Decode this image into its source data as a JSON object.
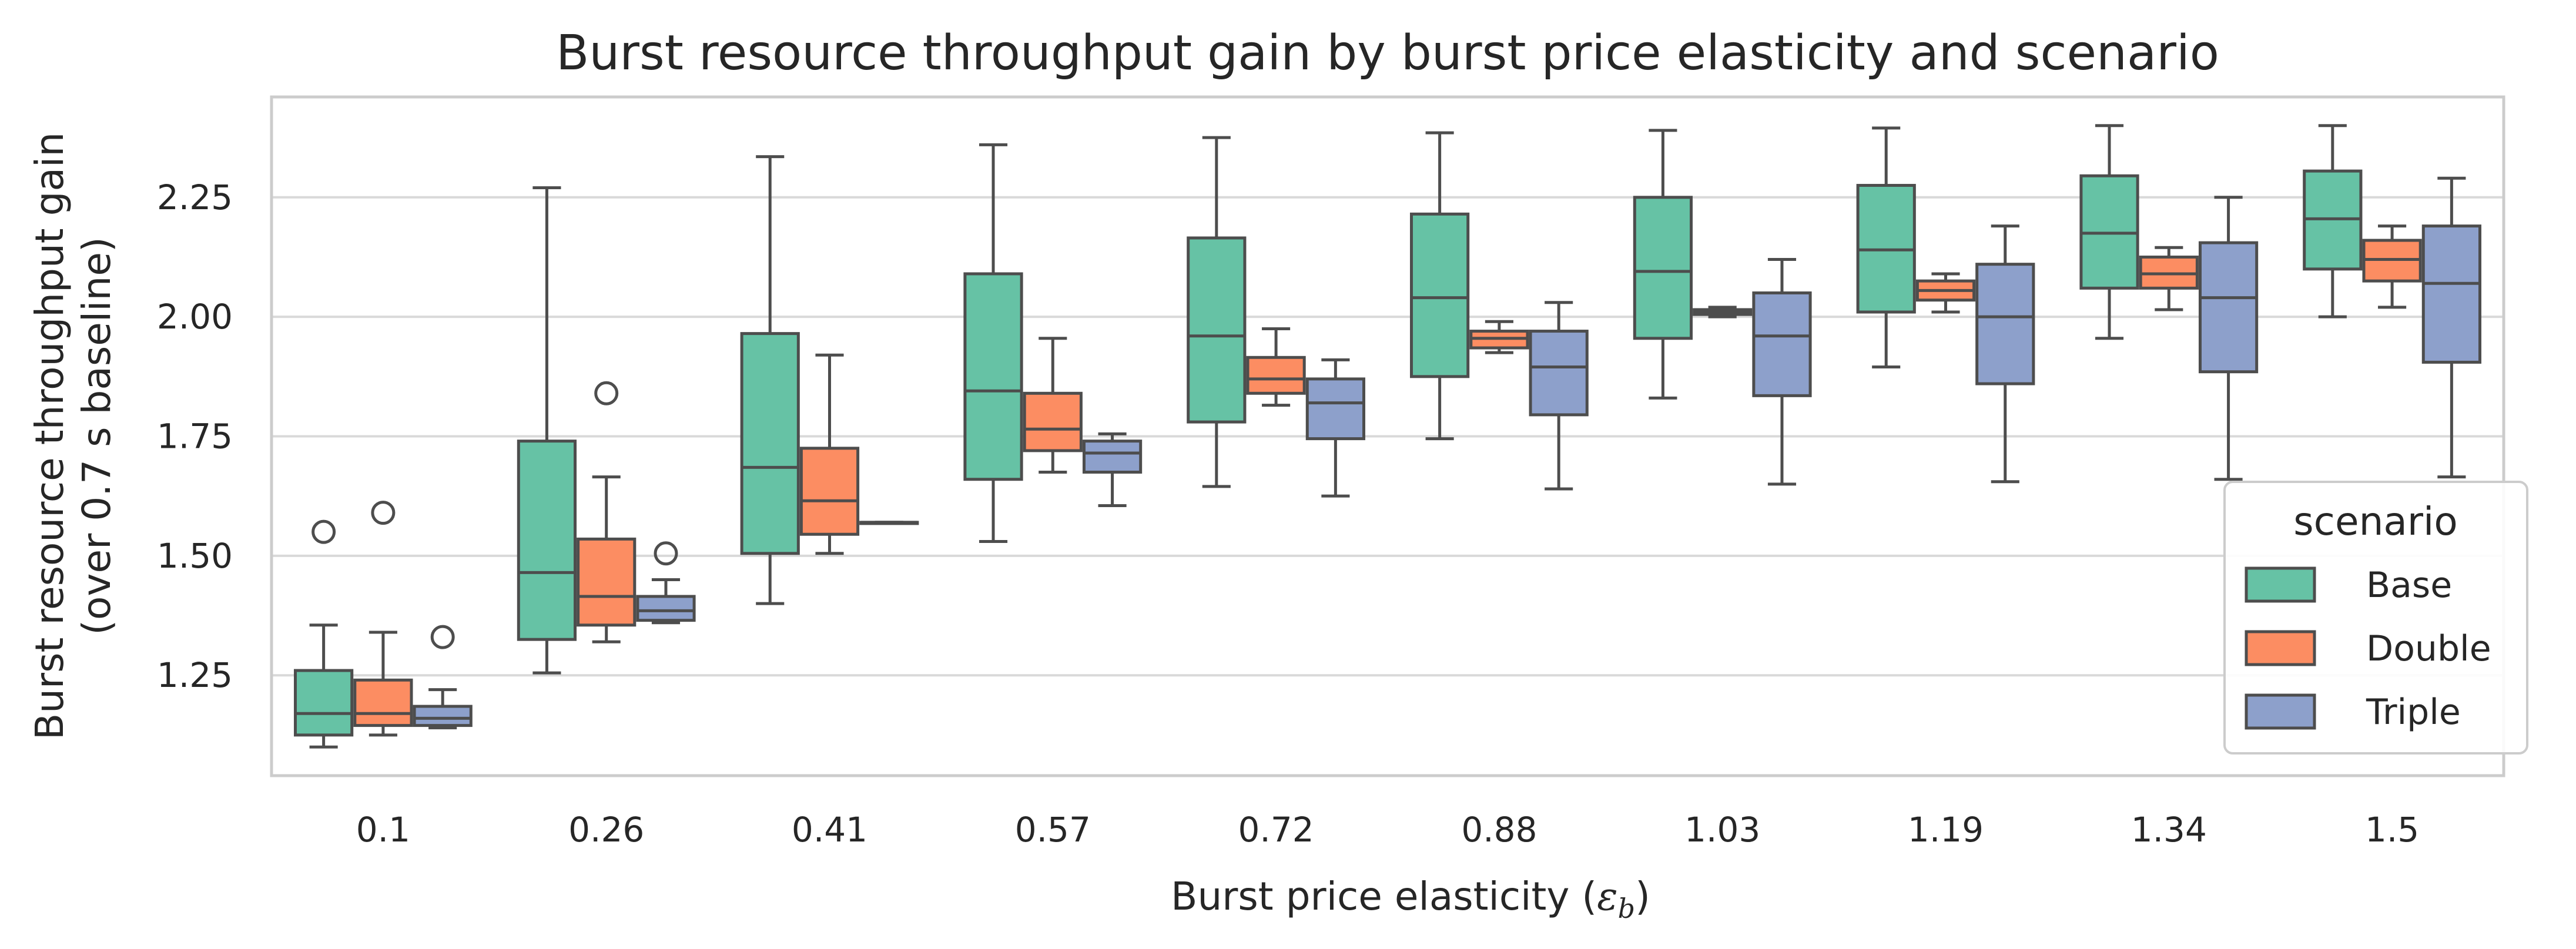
{
  "chart_data": {
    "type": "boxplot",
    "title": "Burst resource throughput gain by burst price elasticity and scenario",
    "xlabel": "Burst price elasticity (",
    "xlabel_symbol": "ε",
    "xlabel_subscript": "b",
    "xlabel_close": ")",
    "ylabel": "Burst resource throughput gain",
    "ylabel2": "(over 0.7 s baseline)",
    "ylim": [
      1.04,
      2.46
    ],
    "yticks": [
      1.25,
      1.5,
      1.75,
      2.0,
      2.25
    ],
    "ytick_labels": [
      "1.25",
      "1.50",
      "1.75",
      "2.00",
      "2.25"
    ],
    "grid": true,
    "categories": [
      "0.1",
      "0.26",
      "0.41",
      "0.57",
      "0.72",
      "0.88",
      "1.03",
      "1.19",
      "1.34",
      "1.5"
    ],
    "legend": {
      "title": "scenario",
      "placement": "lower right"
    },
    "series": [
      {
        "name": "Base",
        "color": "#66c2a5",
        "boxes": [
          {
            "whislo": 1.1,
            "q1": 1.125,
            "med": 1.17,
            "q3": 1.26,
            "whishi": 1.355,
            "fliers": [
              1.55
            ]
          },
          {
            "whislo": 1.255,
            "q1": 1.325,
            "med": 1.465,
            "q3": 1.74,
            "whishi": 2.27,
            "fliers": []
          },
          {
            "whislo": 1.4,
            "q1": 1.505,
            "med": 1.685,
            "q3": 1.965,
            "whishi": 2.335,
            "fliers": []
          },
          {
            "whislo": 1.53,
            "q1": 1.66,
            "med": 1.845,
            "q3": 2.09,
            "whishi": 2.36,
            "fliers": []
          },
          {
            "whislo": 1.645,
            "q1": 1.78,
            "med": 1.96,
            "q3": 2.165,
            "whishi": 2.375,
            "fliers": []
          },
          {
            "whislo": 1.745,
            "q1": 1.875,
            "med": 2.04,
            "q3": 2.215,
            "whishi": 2.385,
            "fliers": []
          },
          {
            "whislo": 1.83,
            "q1": 1.955,
            "med": 2.095,
            "q3": 2.25,
            "whishi": 2.39,
            "fliers": []
          },
          {
            "whislo": 1.895,
            "q1": 2.01,
            "med": 2.14,
            "q3": 2.275,
            "whishi": 2.395,
            "fliers": []
          },
          {
            "whislo": 1.955,
            "q1": 2.06,
            "med": 2.175,
            "q3": 2.295,
            "whishi": 2.4,
            "fliers": []
          },
          {
            "whislo": 2.0,
            "q1": 2.1,
            "med": 2.205,
            "q3": 2.305,
            "whishi": 2.4,
            "fliers": []
          }
        ]
      },
      {
        "name": "Double",
        "color": "#fc8d62",
        "boxes": [
          {
            "whislo": 1.125,
            "q1": 1.145,
            "med": 1.17,
            "q3": 1.24,
            "whishi": 1.34,
            "fliers": [
              1.59
            ]
          },
          {
            "whislo": 1.32,
            "q1": 1.355,
            "med": 1.415,
            "q3": 1.535,
            "whishi": 1.665,
            "fliers": [
              1.84
            ]
          },
          {
            "whislo": 1.505,
            "q1": 1.545,
            "med": 1.615,
            "q3": 1.725,
            "whishi": 1.92,
            "fliers": []
          },
          {
            "whislo": 1.675,
            "q1": 1.72,
            "med": 1.765,
            "q3": 1.84,
            "whishi": 1.955,
            "fliers": []
          },
          {
            "whislo": 1.815,
            "q1": 1.84,
            "med": 1.87,
            "q3": 1.915,
            "whishi": 1.975,
            "fliers": []
          },
          {
            "whislo": 1.925,
            "q1": 1.935,
            "med": 1.955,
            "q3": 1.97,
            "whishi": 1.99,
            "fliers": []
          },
          {
            "whislo": 2.0,
            "q1": 2.005,
            "med": 2.01,
            "q3": 2.015,
            "whishi": 2.02,
            "fliers": []
          },
          {
            "whislo": 2.01,
            "q1": 2.035,
            "med": 2.055,
            "q3": 2.075,
            "whishi": 2.09,
            "fliers": []
          },
          {
            "whislo": 2.015,
            "q1": 2.06,
            "med": 2.09,
            "q3": 2.125,
            "whishi": 2.145,
            "fliers": []
          },
          {
            "whislo": 2.02,
            "q1": 2.075,
            "med": 2.12,
            "q3": 2.16,
            "whishi": 2.19,
            "fliers": []
          }
        ]
      },
      {
        "name": "Triple",
        "color": "#8da0cb",
        "boxes": [
          {
            "whislo": 1.14,
            "q1": 1.145,
            "med": 1.16,
            "q3": 1.185,
            "whishi": 1.22,
            "fliers": [
              1.33
            ]
          },
          {
            "whislo": 1.36,
            "q1": 1.365,
            "med": 1.385,
            "q3": 1.415,
            "whishi": 1.45,
            "fliers": [
              1.505
            ]
          },
          {
            "whislo": 1.57,
            "q1": 1.57,
            "med": 1.57,
            "q3": 1.57,
            "whishi": 1.57,
            "fliers": []
          },
          {
            "whislo": 1.605,
            "q1": 1.675,
            "med": 1.715,
            "q3": 1.74,
            "whishi": 1.755,
            "fliers": []
          },
          {
            "whislo": 1.625,
            "q1": 1.745,
            "med": 1.82,
            "q3": 1.87,
            "whishi": 1.91,
            "fliers": []
          },
          {
            "whislo": 1.64,
            "q1": 1.795,
            "med": 1.895,
            "q3": 1.97,
            "whishi": 2.03,
            "fliers": []
          },
          {
            "whislo": 1.65,
            "q1": 1.835,
            "med": 1.96,
            "q3": 2.05,
            "whishi": 2.12,
            "fliers": []
          },
          {
            "whislo": 1.655,
            "q1": 1.86,
            "med": 2.0,
            "q3": 2.11,
            "whishi": 2.19,
            "fliers": []
          },
          {
            "whislo": 1.66,
            "q1": 1.885,
            "med": 2.04,
            "q3": 2.155,
            "whishi": 2.25,
            "fliers": []
          },
          {
            "whislo": 1.665,
            "q1": 1.905,
            "med": 2.07,
            "q3": 2.19,
            "whishi": 2.29,
            "fliers": []
          }
        ]
      }
    ]
  }
}
